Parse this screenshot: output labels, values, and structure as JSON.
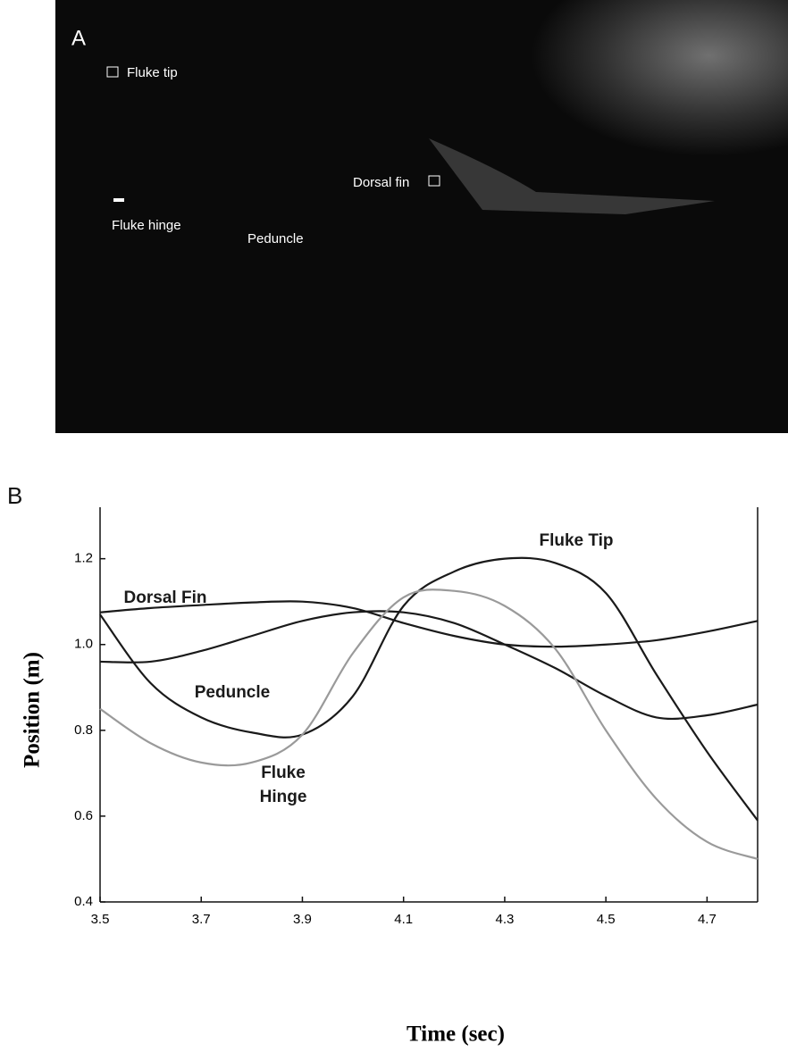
{
  "panel_a": {
    "label": "A",
    "annotations": [
      "Fluke tip",
      "Dorsal fin",
      "Fluke hinge",
      "Peduncle"
    ]
  },
  "panel_b_label": "B",
  "chart_data": {
    "type": "line",
    "x_label": "Time (sec)",
    "y_label": "Position (m)",
    "x": [
      3.5,
      3.6,
      3.7,
      3.8,
      3.9,
      4.0,
      4.1,
      4.2,
      4.3,
      4.4,
      4.5,
      4.6,
      4.7,
      4.8
    ],
    "series": [
      {
        "name": "Fluke Tip",
        "color": "#1a1a1a",
        "values": [
          1.07,
          0.91,
          0.83,
          0.795,
          0.79,
          0.88,
          1.09,
          1.17,
          1.2,
          1.19,
          1.12,
          0.93,
          0.75,
          0.59
        ]
      },
      {
        "name": "Dorsal Fin",
        "color": "#1a1a1a",
        "values": [
          1.075,
          1.085,
          1.092,
          1.098,
          1.1,
          1.085,
          1.05,
          1.02,
          1.0,
          0.995,
          1.0,
          1.01,
          1.03,
          1.055
        ]
      },
      {
        "name": "Peduncle",
        "color": "#1a1a1a",
        "values": [
          0.96,
          0.96,
          0.985,
          1.02,
          1.055,
          1.075,
          1.075,
          1.05,
          1.0,
          0.945,
          0.88,
          0.83,
          0.835,
          0.86
        ]
      },
      {
        "name": "Fluke Hinge",
        "color": "#9a9a9a",
        "values": [
          0.85,
          0.77,
          0.725,
          0.725,
          0.79,
          0.98,
          1.11,
          1.125,
          1.09,
          0.99,
          0.8,
          0.64,
          0.54,
          0.5
        ]
      }
    ],
    "xlim": [
      3.5,
      4.8
    ],
    "ylim": [
      0.4,
      1.32
    ],
    "xticks": [
      3.5,
      3.7,
      3.9,
      4.1,
      4.3,
      4.5,
      4.7
    ],
    "yticks": [
      0.4,
      0.6,
      0.8,
      {
        "value": 1,
        "label": "1.0"
      },
      1.2
    ]
  }
}
